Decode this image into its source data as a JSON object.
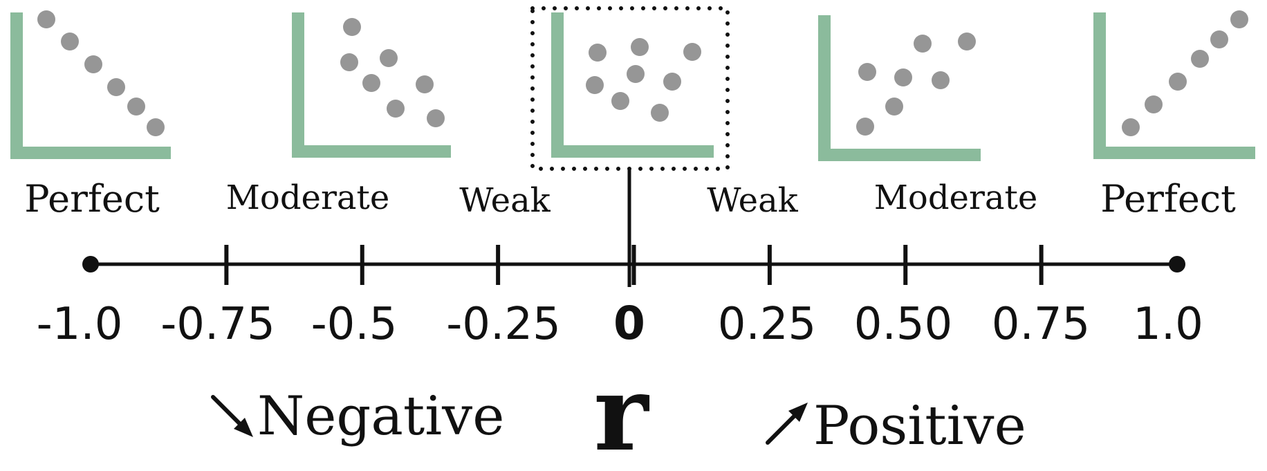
{
  "colors": {
    "axis_green": "#8bbb9c",
    "dot_gray": "#969696",
    "line_black": "#111111"
  },
  "strength_labels": {
    "neg_perfect": "Perfect",
    "neg_moderate": "Moderate",
    "neg_weak": "Weak",
    "pos_weak": "Weak",
    "pos_moderate": "Moderate",
    "pos_perfect": "Perfect"
  },
  "scale": {
    "min": -1.0,
    "max": 1.0,
    "ticks": [
      -0.75,
      -0.5,
      -0.25,
      0,
      0.25,
      0.5,
      0.75
    ],
    "tick_labels": [
      "-1.0",
      "-0.75",
      "-0.5",
      "-0.25",
      "0",
      "0.25",
      "0.50",
      "0.75",
      "1.0"
    ]
  },
  "direction": {
    "negative": "Negative",
    "symbol": "r",
    "positive": "Positive",
    "negative_arrow_icon": "arrow-down-right-icon",
    "positive_arrow_icon": "arrow-up-right-icon"
  },
  "highlight": "dotted-box-around-zero-correlation-plot"
}
